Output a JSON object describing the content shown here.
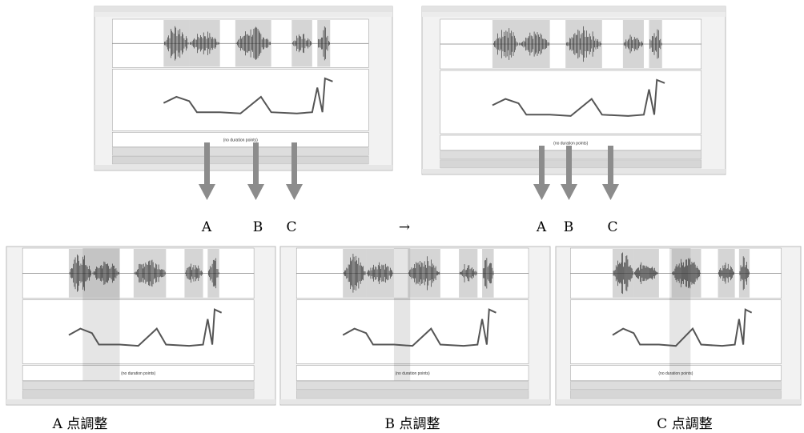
{
  "top_left_labels": [
    "A",
    "B",
    "C"
  ],
  "arrow": "→",
  "top_right_labels": [
    "A",
    "B",
    "C"
  ],
  "top_windows": [
    {
      "note": "(no duration points)"
    },
    {
      "note": "(no duration points)"
    }
  ],
  "panels": [
    {
      "caption": "A 点調整",
      "note": "(no duration points)"
    },
    {
      "caption": "B 点調整",
      "note": "(no duration points)"
    },
    {
      "caption": "C 点調整",
      "note": "(no duration points)"
    }
  ]
}
